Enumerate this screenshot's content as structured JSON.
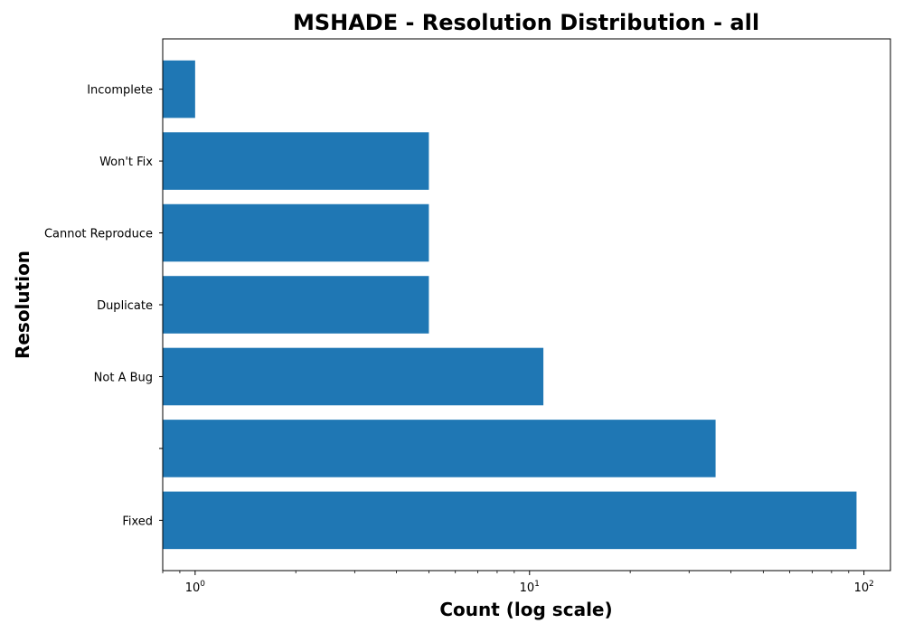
{
  "chart_data": {
    "type": "bar",
    "orientation": "horizontal",
    "title": "MSHADE - Resolution Distribution - all",
    "xlabel": "Count (log scale)",
    "ylabel": "Resolution",
    "x_scale": "log",
    "xlim": [
      0.8,
      120
    ],
    "x_ticks": [
      {
        "base": "10",
        "exp": "0",
        "value": 1
      },
      {
        "base": "10",
        "exp": "1",
        "value": 10
      },
      {
        "base": "10",
        "exp": "2",
        "value": 100
      }
    ],
    "categories": [
      "Fixed",
      "",
      "Not A Bug",
      "Duplicate",
      "Cannot Reproduce",
      "Won't Fix",
      "Incomplete"
    ],
    "values": [
      95,
      36,
      11,
      5,
      5,
      5,
      1
    ],
    "color": "#1f77b4",
    "grid": false,
    "legend": "none"
  }
}
